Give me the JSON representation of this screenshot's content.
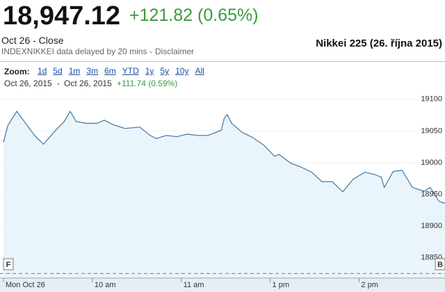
{
  "header": {
    "price": "18,947.12",
    "change": "+121.82 (0.65%)",
    "date_label": "Oct 26 - Close",
    "source": "INDEXNIKKEI data delayed by 20 mins -",
    "disclaimer": "Disclaimer",
    "title": "Nikkei 225 (26. října 2015)"
  },
  "zoom": {
    "label": "Zoom:",
    "options": [
      "1d",
      "5d",
      "1m",
      "3m",
      "6m",
      "YTD",
      "1y",
      "5y",
      "10y",
      "All"
    ],
    "from": "Oct 26, 2015",
    "separator": "-",
    "to": "Oct 26, 2015",
    "change": "+111.74 (0.59%)"
  },
  "chart_data": {
    "type": "line",
    "color": "#4a7fab",
    "fill_color": "#eaf4fb",
    "grid": true,
    "x": [
      0,
      3,
      9,
      14,
      21,
      27,
      34,
      41,
      45,
      49,
      56,
      63,
      68,
      75,
      82,
      92,
      99,
      103,
      110,
      117,
      124,
      131,
      138,
      147,
      149,
      151,
      154,
      161,
      168,
      176,
      183,
      186,
      194,
      200,
      208,
      215,
      222,
      229,
      236,
      244,
      251,
      255,
      257,
      263,
      269,
      276,
      284,
      288,
      294,
      298
    ],
    "values": [
      19032,
      19059,
      19081,
      19065,
      19043,
      19029,
      19048,
      19065,
      19081,
      19065,
      19062,
      19062,
      19067,
      19059,
      19054,
      19056,
      19043,
      19038,
      19043,
      19041,
      19045,
      19043,
      19043,
      19051,
      19070,
      19076,
      19062,
      19048,
      19040,
      19027,
      19010,
      19013,
      18999,
      18994,
      18985,
      18970,
      18970,
      18954,
      18974,
      18985,
      18981,
      18977,
      18961,
      18986,
      18988,
      18961,
      18955,
      18961,
      18939,
      18936
    ],
    "reference_line": 18825.3,
    "reference_color": "#d9534f",
    "xlim": [
      0,
      298
    ],
    "xticks": [
      {
        "value": 0,
        "label": "Mon Oct 26"
      },
      {
        "value": 60,
        "label": "10 am"
      },
      {
        "value": 120,
        "label": "11 am"
      },
      {
        "value": 180,
        "label": "1 pm"
      },
      {
        "value": 240,
        "label": "2 pm"
      }
    ],
    "ylim": [
      18818,
      19114
    ],
    "yticks": [
      18850,
      18900,
      18950,
      19000,
      19050,
      19100
    ],
    "flags": [
      "F",
      "B"
    ]
  }
}
